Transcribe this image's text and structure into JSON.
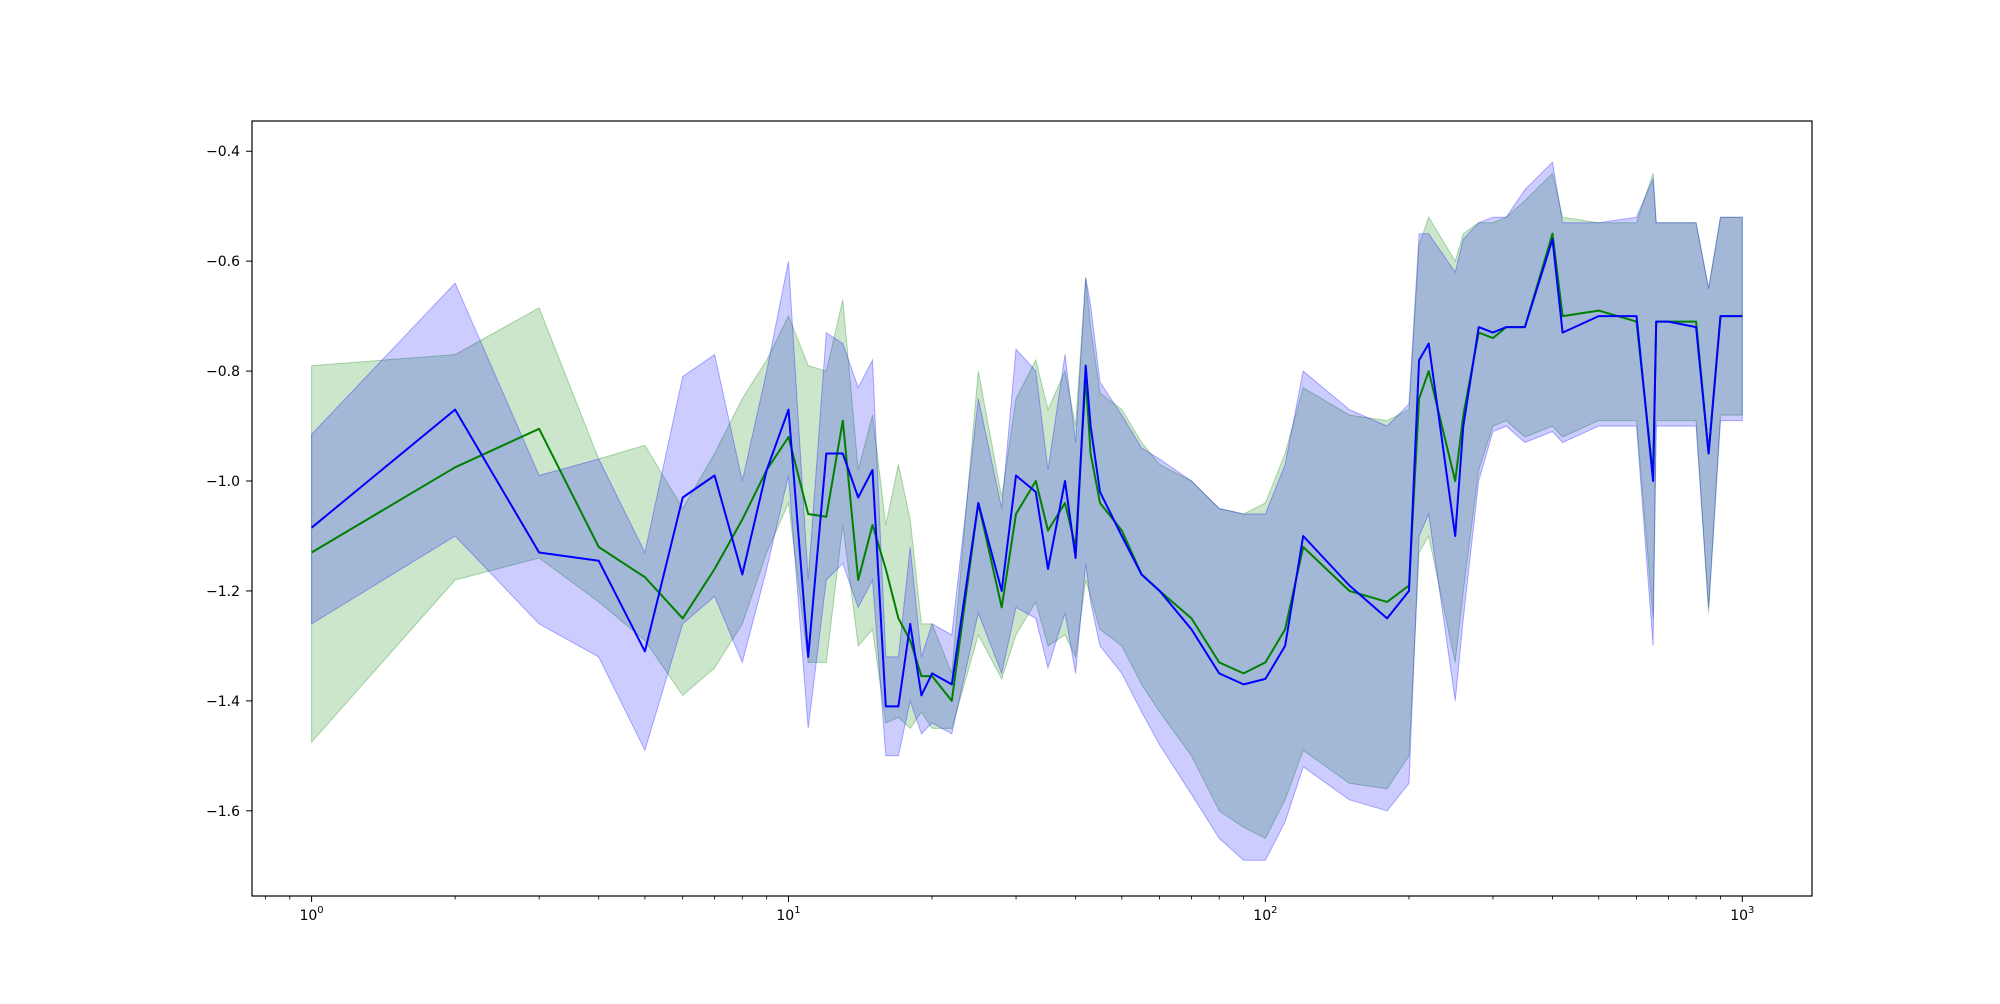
{
  "chart_data": {
    "type": "line",
    "title": "",
    "xlabel": "",
    "ylabel": "",
    "xscale": "log",
    "xlim": [
      0.75,
      1400
    ],
    "ylim": [
      -1.755,
      -0.345
    ],
    "grid": false,
    "legend": "none",
    "x_ticks": [
      {
        "value": 1,
        "label_base": "10",
        "label_exp": "0"
      },
      {
        "value": 10,
        "label_base": "10",
        "label_exp": "1"
      },
      {
        "value": 100,
        "label_base": "10",
        "label_exp": "2"
      },
      {
        "value": 1000,
        "label_base": "10",
        "label_exp": "3"
      }
    ],
    "y_ticks": [
      {
        "value": -0.4,
        "label": "−0.4"
      },
      {
        "value": -0.6,
        "label": "−0.6"
      },
      {
        "value": -0.8,
        "label": "−0.8"
      },
      {
        "value": -1.0,
        "label": "−1.0"
      },
      {
        "value": -1.2,
        "label": "−1.2"
      },
      {
        "value": -1.4,
        "label": "−1.4"
      },
      {
        "value": -1.6,
        "label": "−1.6"
      }
    ],
    "series": [
      {
        "color": "#008000",
        "band_color": "#008000",
        "band_opacity": 0.2,
        "x": [
          1,
          2,
          3,
          4,
          5,
          6,
          7,
          8,
          9,
          10,
          11,
          12,
          13,
          14,
          15,
          16,
          17,
          18,
          19,
          20,
          22,
          25,
          28,
          30,
          33,
          35,
          38,
          40,
          42,
          43,
          45,
          50,
          55,
          60,
          70,
          80,
          90,
          100,
          110,
          120,
          150,
          180,
          200,
          210,
          220,
          250,
          260,
          280,
          300,
          320,
          350,
          400,
          420,
          500,
          600,
          650,
          660,
          700,
          800,
          850,
          900,
          1000
        ],
        "y": [
          -1.13,
          -0.975,
          -0.905,
          -1.12,
          -1.175,
          -1.25,
          -1.16,
          -1.07,
          -0.98,
          -0.92,
          -1.06,
          -1.065,
          -0.89,
          -1.18,
          -1.08,
          -1.16,
          -1.25,
          -1.29,
          -1.355,
          -1.355,
          -1.4,
          -1.04,
          -1.23,
          -1.06,
          -1.0,
          -1.09,
          -1.04,
          -1.12,
          -0.81,
          -0.95,
          -1.04,
          -1.09,
          -1.17,
          -1.2,
          -1.25,
          -1.33,
          -1.35,
          -1.33,
          -1.27,
          -1.12,
          -1.2,
          -1.22,
          -1.19,
          -0.85,
          -0.8,
          -1.0,
          -0.88,
          -0.73,
          -0.74,
          -0.72,
          -0.72,
          -0.55,
          -0.7,
          -0.69,
          -0.71,
          -0.99,
          -0.71,
          -0.71,
          -0.71,
          -0.95,
          -0.7,
          -0.7
        ],
        "lower": [
          -1.475,
          -1.18,
          -1.14,
          -1.22,
          -1.29,
          -1.39,
          -1.34,
          -1.26,
          -1.13,
          -1.04,
          -1.33,
          -1.33,
          -1.08,
          -1.3,
          -1.27,
          -1.44,
          -1.43,
          -1.45,
          -1.42,
          -1.45,
          -1.45,
          -1.28,
          -1.36,
          -1.28,
          -1.22,
          -1.3,
          -1.28,
          -1.32,
          -1.18,
          -1.21,
          -1.27,
          -1.3,
          -1.37,
          -1.42,
          -1.5,
          -1.6,
          -1.63,
          -1.65,
          -1.58,
          -1.49,
          -1.55,
          -1.56,
          -1.5,
          -1.13,
          -1.1,
          -1.33,
          -1.2,
          -0.98,
          -0.9,
          -0.89,
          -0.92,
          -0.9,
          -0.92,
          -0.89,
          -0.89,
          -1.25,
          -0.89,
          -0.89,
          -0.89,
          -1.24,
          -0.88,
          -0.88
        ],
        "upper": [
          -0.79,
          -0.77,
          -0.685,
          -0.96,
          -0.935,
          -1.05,
          -0.95,
          -0.85,
          -0.78,
          -0.7,
          -0.79,
          -0.8,
          -0.67,
          -0.98,
          -0.88,
          -1.08,
          -0.97,
          -1.07,
          -1.26,
          -1.26,
          -1.35,
          -0.8,
          -1.03,
          -0.85,
          -0.78,
          -0.87,
          -0.8,
          -0.9,
          -0.63,
          -0.72,
          -0.84,
          -0.87,
          -0.93,
          -0.97,
          -1.0,
          -1.05,
          -1.06,
          -1.04,
          -0.95,
          -0.83,
          -0.88,
          -0.89,
          -0.87,
          -0.57,
          -0.52,
          -0.6,
          -0.55,
          -0.53,
          -0.53,
          -0.52,
          -0.49,
          -0.44,
          -0.52,
          -0.53,
          -0.53,
          -0.44,
          -0.53,
          -0.53,
          -0.53,
          -0.65,
          -0.52,
          -0.52
        ]
      },
      {
        "color": "#0000ff",
        "band_color": "#0000ff",
        "band_opacity": 0.2,
        "x": [
          1,
          2,
          3,
          4,
          5,
          6,
          7,
          8,
          9,
          10,
          11,
          12,
          13,
          14,
          15,
          16,
          17,
          18,
          19,
          20,
          22,
          25,
          28,
          30,
          33,
          35,
          38,
          40,
          42,
          43,
          45,
          50,
          55,
          60,
          70,
          80,
          90,
          100,
          110,
          120,
          150,
          180,
          200,
          210,
          220,
          250,
          260,
          280,
          300,
          320,
          350,
          400,
          420,
          500,
          600,
          650,
          660,
          700,
          800,
          850,
          900,
          1000
        ],
        "y": [
          -1.085,
          -0.87,
          -1.13,
          -1.145,
          -1.31,
          -1.03,
          -0.99,
          -1.17,
          -0.98,
          -0.87,
          -1.32,
          -0.95,
          -0.95,
          -1.03,
          -0.98,
          -1.41,
          -1.41,
          -1.26,
          -1.39,
          -1.35,
          -1.37,
          -1.04,
          -1.2,
          -0.99,
          -1.02,
          -1.16,
          -1.0,
          -1.14,
          -0.79,
          -0.9,
          -1.02,
          -1.1,
          -1.17,
          -1.2,
          -1.27,
          -1.35,
          -1.37,
          -1.36,
          -1.3,
          -1.1,
          -1.19,
          -1.25,
          -1.2,
          -0.78,
          -0.75,
          -1.1,
          -0.9,
          -0.72,
          -0.73,
          -0.72,
          -0.72,
          -0.56,
          -0.73,
          -0.7,
          -0.7,
          -1.0,
          -0.71,
          -0.71,
          -0.72,
          -0.95,
          -0.7,
          -0.7
        ],
        "lower": [
          -1.26,
          -1.1,
          -1.26,
          -1.32,
          -1.49,
          -1.26,
          -1.21,
          -1.33,
          -1.16,
          -0.99,
          -1.45,
          -1.18,
          -1.15,
          -1.23,
          -1.18,
          -1.5,
          -1.5,
          -1.4,
          -1.46,
          -1.44,
          -1.46,
          -1.24,
          -1.35,
          -1.23,
          -1.25,
          -1.34,
          -1.24,
          -1.35,
          -1.15,
          -1.22,
          -1.3,
          -1.35,
          -1.42,
          -1.48,
          -1.57,
          -1.65,
          -1.69,
          -1.69,
          -1.62,
          -1.52,
          -1.58,
          -1.6,
          -1.55,
          -1.1,
          -1.06,
          -1.4,
          -1.25,
          -1.0,
          -0.91,
          -0.9,
          -0.93,
          -0.91,
          -0.93,
          -0.9,
          -0.9,
          -1.3,
          -0.9,
          -0.9,
          -0.9,
          -1.23,
          -0.89,
          -0.89
        ],
        "upper": [
          -0.915,
          -0.64,
          -0.99,
          -0.96,
          -1.13,
          -0.81,
          -0.77,
          -1.0,
          -0.8,
          -0.6,
          -1.18,
          -0.73,
          -0.75,
          -0.83,
          -0.78,
          -1.32,
          -1.32,
          -1.12,
          -1.32,
          -1.26,
          -1.28,
          -0.85,
          -1.05,
          -0.76,
          -0.8,
          -0.98,
          -0.77,
          -0.93,
          -0.63,
          -0.68,
          -0.82,
          -0.88,
          -0.94,
          -0.96,
          -1.0,
          -1.05,
          -1.06,
          -1.06,
          -0.97,
          -0.8,
          -0.87,
          -0.9,
          -0.86,
          -0.55,
          -0.55,
          -0.62,
          -0.56,
          -0.53,
          -0.52,
          -0.52,
          -0.47,
          -0.42,
          -0.53,
          -0.53,
          -0.52,
          -0.45,
          -0.53,
          -0.53,
          -0.53,
          -0.65,
          -0.52,
          -0.52
        ]
      }
    ]
  }
}
